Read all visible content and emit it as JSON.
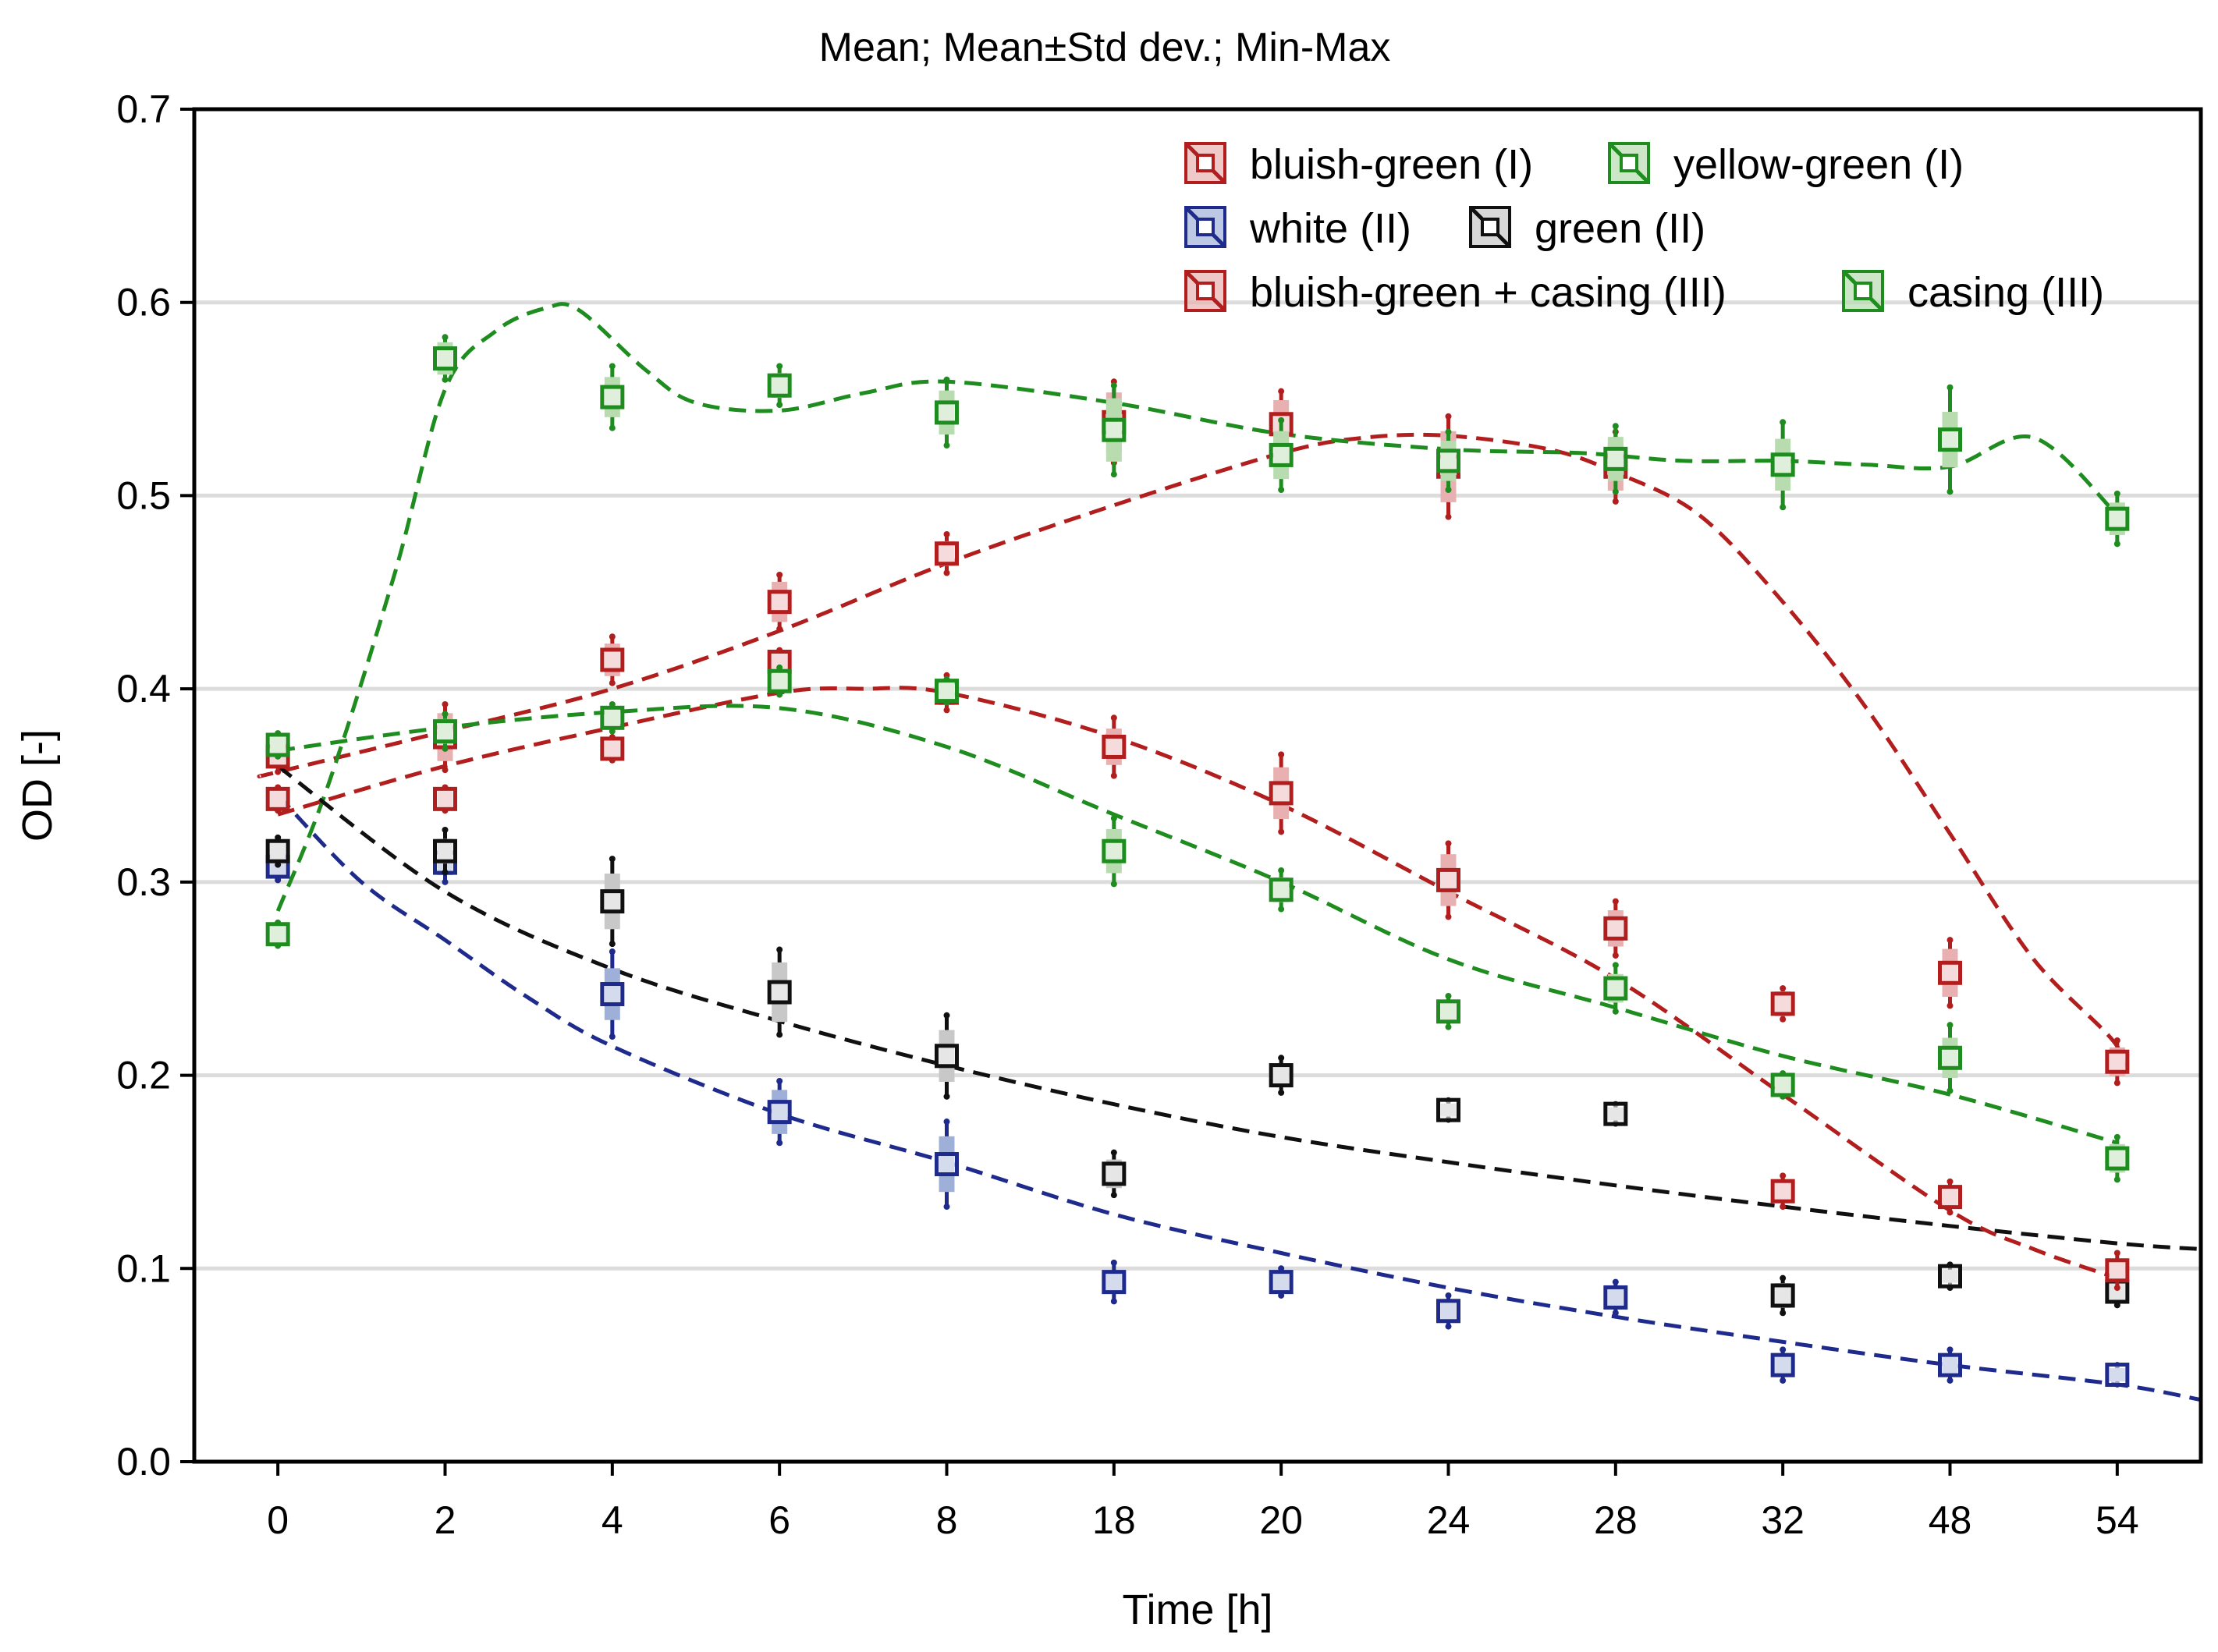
{
  "chart_data": {
    "type": "scatter",
    "title": "Mean;  Mean±Std dev.; Min-Max",
    "xlabel": "Time [h]",
    "ylabel": "OD [-]",
    "categories": [
      "0",
      "2",
      "4",
      "6",
      "8",
      "18",
      "20",
      "24",
      "28",
      "32",
      "48",
      "54"
    ],
    "x_range": [
      -0.5,
      11.5
    ],
    "ylim": [
      0.0,
      0.7
    ],
    "yticks": [
      "0.0",
      "0.1",
      "0.2",
      "0.3",
      "0.4",
      "0.5",
      "0.6",
      "0.7"
    ],
    "grid": true,
    "legend_position": "top-right",
    "series": [
      {
        "name": "bluish-green (I)",
        "color": "#b21e1e",
        "fill": "#e8b0b0",
        "mean": [
          0.365,
          0.375,
          0.415,
          0.445,
          0.47,
          0.538,
          0.537,
          0.515,
          0.515,
          0.237,
          0.253,
          0.207
        ],
        "std": [
          0.005,
          0.012,
          0.008,
          0.01,
          0.006,
          0.015,
          0.012,
          0.018,
          0.012,
          0.006,
          0.012,
          0.007
        ],
        "range": [
          0.008,
          0.017,
          0.012,
          0.014,
          0.01,
          0.021,
          0.017,
          0.026,
          0.018,
          0.008,
          0.017,
          0.011
        ],
        "fit_knots": [
          [
            -0.1,
            0.355
          ],
          [
            0,
            0.357
          ],
          [
            1,
            0.378
          ],
          [
            2,
            0.4
          ],
          [
            3,
            0.43
          ],
          [
            4,
            0.465
          ],
          [
            5,
            0.495
          ],
          [
            6,
            0.522
          ],
          [
            6.5,
            0.53
          ],
          [
            7,
            0.531
          ],
          [
            7.6,
            0.524
          ],
          [
            8,
            0.512
          ],
          [
            8.5,
            0.49
          ],
          [
            9,
            0.445
          ],
          [
            9.5,
            0.39
          ],
          [
            10,
            0.325
          ],
          [
            10.5,
            0.26
          ],
          [
            11,
            0.215
          ],
          [
            11,
            0.195
          ]
        ]
      },
      {
        "name": "yellow-green (I)",
        "color": "#1e8c1e",
        "fill": "#b8dcb0",
        "mean": [
          0.273,
          0.571,
          0.551,
          0.557,
          0.543,
          0.534,
          0.521,
          0.518,
          0.519,
          0.516,
          0.529,
          0.488
        ],
        "std": [
          0.004,
          0.008,
          0.01,
          0.006,
          0.011,
          0.016,
          0.012,
          0.01,
          0.011,
          0.013,
          0.014,
          0.008
        ],
        "range": [
          0.006,
          0.011,
          0.016,
          0.01,
          0.017,
          0.023,
          0.018,
          0.015,
          0.017,
          0.022,
          0.027,
          0.013
        ],
        "fit_knots": [
          [
            0,
            0.285
          ],
          [
            0.3,
            0.35
          ],
          [
            0.7,
            0.46
          ],
          [
            1,
            0.555
          ],
          [
            1.3,
            0.585
          ],
          [
            1.6,
            0.597
          ],
          [
            1.8,
            0.596
          ],
          [
            2.2,
            0.565
          ],
          [
            2.5,
            0.548
          ],
          [
            3,
            0.544
          ],
          [
            3.5,
            0.553
          ],
          [
            4,
            0.559
          ],
          [
            5,
            0.548
          ],
          [
            6,
            0.532
          ],
          [
            7,
            0.524
          ],
          [
            7.8,
            0.522
          ],
          [
            8.4,
            0.518
          ],
          [
            9,
            0.518
          ],
          [
            9.5,
            0.516
          ],
          [
            10,
            0.515
          ],
          [
            10.5,
            0.53
          ],
          [
            11,
            0.49
          ]
        ]
      },
      {
        "name": "white (II)",
        "color": "#1e2a8c",
        "fill": "#9fb0d8",
        "mean": [
          0.308,
          0.31,
          0.242,
          0.181,
          0.154,
          0.093,
          0.093,
          0.078,
          0.085,
          0.05,
          0.05,
          0.045
        ],
        "std": [
          0.004,
          0.006,
          0.013,
          0.011,
          0.014,
          0.005,
          0.005,
          0.005,
          0.005,
          0.004,
          0.004,
          0.003
        ],
        "range": [
          0.007,
          0.01,
          0.022,
          0.016,
          0.022,
          0.01,
          0.007,
          0.008,
          0.008,
          0.008,
          0.008,
          0.005
        ],
        "fit_knots": [
          [
            0,
            0.345
          ],
          [
            0.5,
            0.3
          ],
          [
            1,
            0.27
          ],
          [
            1.5,
            0.24
          ],
          [
            2,
            0.215
          ],
          [
            3,
            0.18
          ],
          [
            4,
            0.155
          ],
          [
            5,
            0.128
          ],
          [
            6,
            0.108
          ],
          [
            7,
            0.09
          ],
          [
            8,
            0.075
          ],
          [
            9,
            0.062
          ],
          [
            10,
            0.05
          ],
          [
            11,
            0.04
          ],
          [
            11.5,
            0.032
          ]
        ]
      },
      {
        "name": "green (II)",
        "color": "#101010",
        "fill": "#c8c8c8",
        "mean": [
          0.316,
          0.316,
          0.29,
          0.243,
          0.21,
          0.149,
          0.2,
          0.182,
          0.18,
          0.086,
          0.096,
          0.088
        ],
        "std": [
          0.004,
          0.006,
          0.014,
          0.015,
          0.013,
          0.007,
          0.005,
          0.003,
          0.003,
          0.006,
          0.003,
          0.004
        ],
        "range": [
          0.007,
          0.011,
          0.022,
          0.022,
          0.021,
          0.011,
          0.009,
          0.005,
          0.005,
          0.009,
          0.006,
          0.007
        ],
        "fit_knots": [
          [
            0,
            0.36
          ],
          [
            1,
            0.295
          ],
          [
            2,
            0.255
          ],
          [
            3,
            0.228
          ],
          [
            4,
            0.205
          ],
          [
            5,
            0.185
          ],
          [
            6,
            0.168
          ],
          [
            7,
            0.155
          ],
          [
            8,
            0.143
          ],
          [
            9,
            0.132
          ],
          [
            10,
            0.122
          ],
          [
            11,
            0.113
          ],
          [
            11.5,
            0.11
          ]
        ]
      },
      {
        "name": "bluish-green + casing (III)",
        "color": "#b21e1e",
        "fill": "#e8b0b0",
        "mean": [
          0.343,
          0.343,
          0.369,
          0.414,
          0.398,
          0.37,
          0.346,
          0.301,
          0.276,
          0.14,
          0.137,
          0.099
        ],
        "std": [
          0.004,
          0.004,
          0.004,
          0.004,
          0.006,
          0.009,
          0.013,
          0.013,
          0.009,
          0.005,
          0.005,
          0.005
        ],
        "range": [
          0.006,
          0.006,
          0.006,
          0.006,
          0.009,
          0.015,
          0.02,
          0.019,
          0.014,
          0.008,
          0.008,
          0.009
        ],
        "fit_knots": [
          [
            0,
            0.335
          ],
          [
            1,
            0.36
          ],
          [
            2,
            0.38
          ],
          [
            3,
            0.398
          ],
          [
            3.5,
            0.4
          ],
          [
            4,
            0.398
          ],
          [
            5,
            0.375
          ],
          [
            6,
            0.34
          ],
          [
            7,
            0.295
          ],
          [
            8,
            0.25
          ],
          [
            9,
            0.19
          ],
          [
            10,
            0.13
          ],
          [
            10.5,
            0.11
          ],
          [
            11,
            0.095
          ]
        ]
      },
      {
        "name": "casing (III)",
        "color": "#1e8c1e",
        "fill": "#b8dcb0",
        "mean": [
          0.371,
          0.378,
          0.385,
          0.404,
          0.399,
          0.316,
          0.296,
          0.233,
          0.245,
          0.195,
          0.209,
          0.157
        ],
        "std": [
          0.004,
          0.006,
          0.004,
          0.004,
          0.004,
          0.011,
          0.006,
          0.005,
          0.007,
          0.004,
          0.01,
          0.007
        ],
        "range": [
          0.006,
          0.009,
          0.007,
          0.007,
          0.006,
          0.017,
          0.01,
          0.008,
          0.012,
          0.006,
          0.017,
          0.011
        ],
        "fit_knots": [
          [
            0,
            0.368
          ],
          [
            1,
            0.38
          ],
          [
            2,
            0.388
          ],
          [
            3,
            0.39
          ],
          [
            4,
            0.37
          ],
          [
            5,
            0.335
          ],
          [
            6,
            0.3
          ],
          [
            7,
            0.26
          ],
          [
            8,
            0.235
          ],
          [
            9,
            0.21
          ],
          [
            10,
            0.19
          ],
          [
            11,
            0.165
          ]
        ]
      }
    ]
  }
}
